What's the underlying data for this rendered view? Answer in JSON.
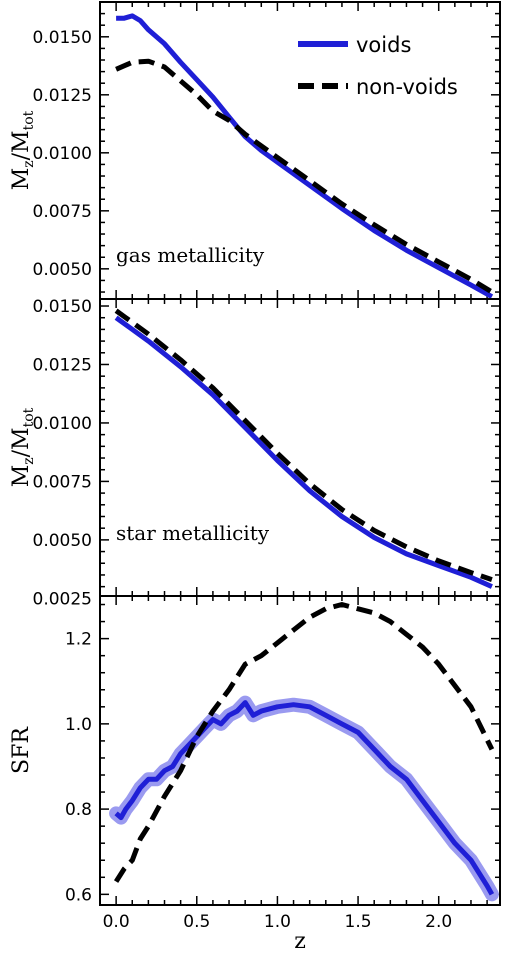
{
  "legend": {
    "voids": "voids",
    "nonvoids": "non-voids"
  },
  "colors": {
    "voids": "#1f1fd6",
    "voids_band": "#9a9af0",
    "nonvoids": "#000000"
  },
  "chart_data": [
    {
      "type": "line",
      "ylabel": "M_z/M_tot",
      "ylabel_main": "M",
      "ylabel_sub1": "z",
      "ylabel_mid": "/M",
      "ylabel_sub2": "tot",
      "annotation": "gas metallicity",
      "xlim": [
        -0.1,
        2.38
      ],
      "ylim": [
        0.0037,
        0.0165
      ],
      "yticks": [
        "0.0050",
        "0.0075",
        "0.0100",
        "0.0125",
        "0.0150"
      ],
      "ytick_values": [
        0.005,
        0.0075,
        0.01,
        0.0125,
        0.015
      ],
      "legend_position": "top-right",
      "series": [
        {
          "name": "voids",
          "x": [
            0.0,
            0.05,
            0.1,
            0.15,
            0.2,
            0.3,
            0.4,
            0.5,
            0.6,
            0.7,
            0.8,
            0.9,
            1.0,
            1.2,
            1.4,
            1.6,
            1.8,
            2.0,
            2.2,
            2.33
          ],
          "y": [
            0.0158,
            0.0158,
            0.0159,
            0.0157,
            0.0153,
            0.0147,
            0.0139,
            0.01315,
            0.0124,
            0.01155,
            0.0107,
            0.0101,
            0.0096,
            0.0086,
            0.0076,
            0.00665,
            0.0058,
            0.00505,
            0.0043,
            0.0038
          ]
        },
        {
          "name": "non-voids",
          "x": [
            0.0,
            0.1,
            0.2,
            0.3,
            0.4,
            0.5,
            0.6,
            0.7,
            0.8,
            0.9,
            1.0,
            1.2,
            1.4,
            1.6,
            1.8,
            2.0,
            2.2,
            2.33
          ],
          "y": [
            0.0136,
            0.0139,
            0.01395,
            0.0137,
            0.0131,
            0.0125,
            0.0118,
            0.0114,
            0.0108,
            0.0103,
            0.0098,
            0.0088,
            0.0078,
            0.0069,
            0.00605,
            0.0053,
            0.00455,
            0.004
          ]
        }
      ]
    },
    {
      "type": "line",
      "ylabel": "M_z/M_tot",
      "ylabel_main": "M",
      "ylabel_sub1": "z",
      "ylabel_mid": "/M",
      "ylabel_sub2": "tot",
      "annotation": "star metallicity",
      "xlim": [
        -0.1,
        2.38
      ],
      "ylim": [
        0.0026,
        0.0153
      ],
      "yticks": [
        "0.0025",
        "0.0050",
        "0.0075",
        "0.0100",
        "0.0125",
        "0.0150"
      ],
      "ytick_values": [
        0.0025,
        0.005,
        0.0075,
        0.01,
        0.0125,
        0.015
      ],
      "series": [
        {
          "name": "voids",
          "x": [
            0.0,
            0.2,
            0.4,
            0.6,
            0.8,
            1.0,
            1.2,
            1.4,
            1.6,
            1.8,
            2.0,
            2.2,
            2.33
          ],
          "y": [
            0.0145,
            0.0135,
            0.0124,
            0.0112,
            0.0098,
            0.0084,
            0.0071,
            0.006,
            0.0051,
            0.0044,
            0.0039,
            0.0034,
            0.003
          ]
        },
        {
          "name": "non-voids",
          "x": [
            0.0,
            0.2,
            0.4,
            0.6,
            0.8,
            1.0,
            1.2,
            1.4,
            1.6,
            1.8,
            2.0,
            2.2,
            2.33
          ],
          "y": [
            0.0148,
            0.0138,
            0.0127,
            0.0115,
            0.0101,
            0.0087,
            0.0074,
            0.0063,
            0.0054,
            0.0047,
            0.0041,
            0.0036,
            0.0033
          ]
        }
      ]
    },
    {
      "type": "line",
      "ylabel": "SFR",
      "xlabel": "z",
      "xlim": [
        -0.1,
        2.38
      ],
      "ylim": [
        0.575,
        1.3
      ],
      "yticks": [
        "0.6",
        "0.8",
        "1.0",
        "1.2"
      ],
      "ytick_values": [
        0.6,
        0.8,
        1.0,
        1.2
      ],
      "xticks": [
        "0.0",
        "0.5",
        "1.0",
        "1.5",
        "2.0"
      ],
      "xtick_values": [
        0.0,
        0.5,
        1.0,
        1.5,
        2.0
      ],
      "series": [
        {
          "name": "voids",
          "x": [
            0.0,
            0.03,
            0.06,
            0.1,
            0.15,
            0.2,
            0.25,
            0.3,
            0.35,
            0.4,
            0.45,
            0.5,
            0.55,
            0.6,
            0.65,
            0.7,
            0.75,
            0.8,
            0.85,
            0.9,
            1.0,
            1.1,
            1.2,
            1.3,
            1.4,
            1.5,
            1.6,
            1.7,
            1.8,
            1.9,
            2.0,
            2.1,
            2.2,
            2.3,
            2.33
          ],
          "y": [
            0.79,
            0.78,
            0.8,
            0.82,
            0.85,
            0.87,
            0.87,
            0.89,
            0.9,
            0.93,
            0.95,
            0.97,
            0.99,
            1.01,
            1.0,
            1.02,
            1.03,
            1.05,
            1.02,
            1.03,
            1.04,
            1.045,
            1.04,
            1.02,
            1.0,
            0.98,
            0.94,
            0.9,
            0.87,
            0.82,
            0.77,
            0.72,
            0.68,
            0.62,
            0.6
          ]
        },
        {
          "name": "non-voids",
          "x": [
            0.0,
            0.05,
            0.1,
            0.15,
            0.2,
            0.3,
            0.4,
            0.5,
            0.6,
            0.7,
            0.8,
            0.9,
            1.0,
            1.1,
            1.2,
            1.3,
            1.4,
            1.5,
            1.6,
            1.7,
            1.8,
            1.9,
            2.0,
            2.1,
            2.2,
            2.33
          ],
          "y": [
            0.63,
            0.66,
            0.68,
            0.73,
            0.76,
            0.83,
            0.89,
            0.97,
            1.03,
            1.08,
            1.14,
            1.16,
            1.19,
            1.22,
            1.25,
            1.27,
            1.28,
            1.27,
            1.26,
            1.24,
            1.21,
            1.18,
            1.14,
            1.09,
            1.04,
            0.94
          ]
        }
      ]
    }
  ]
}
